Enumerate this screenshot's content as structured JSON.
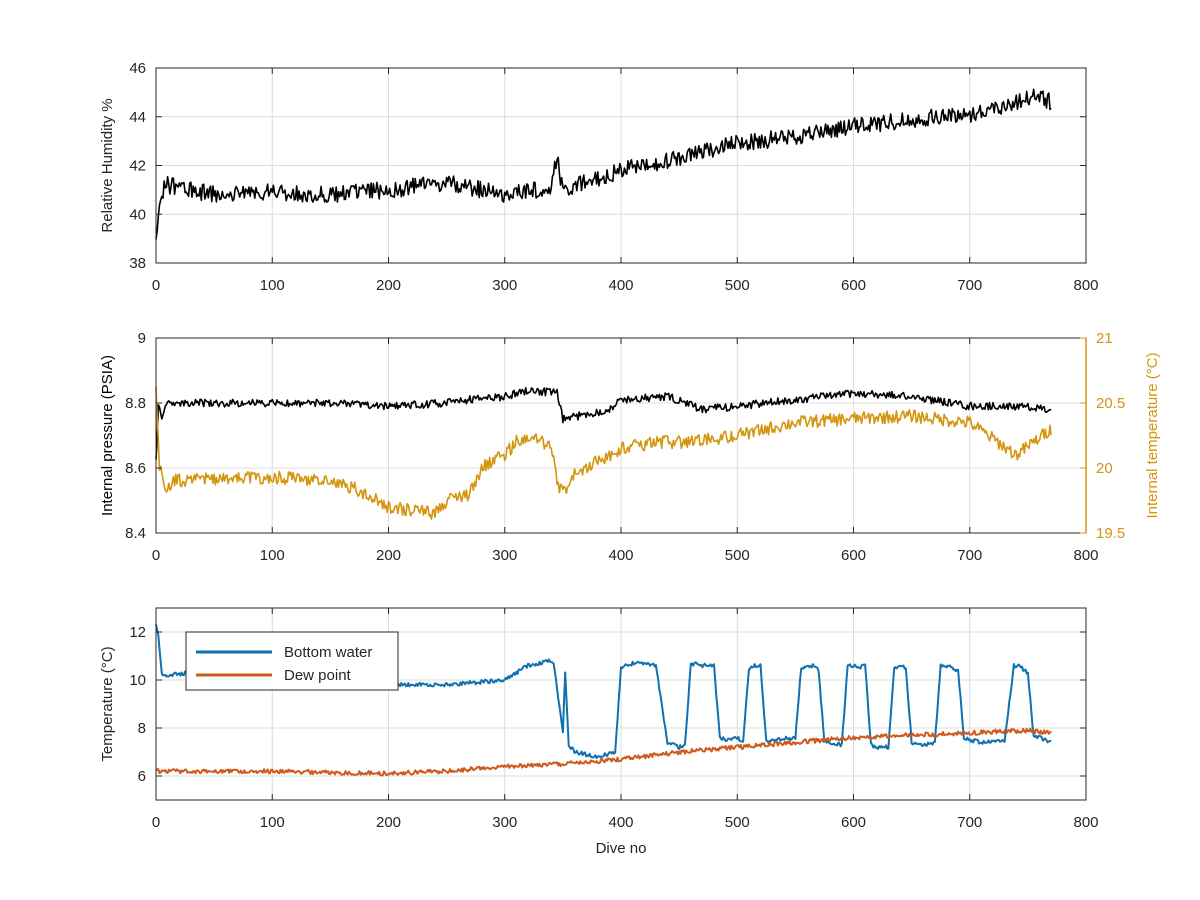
{
  "colors": {
    "black": "#000000",
    "gold": "#D4950F",
    "blue": "#1170B0",
    "orange": "#CD5A1E",
    "grid": "#dcdcdc",
    "axis": "#262626"
  },
  "chart_data": [
    {
      "type": "line",
      "xlabel": "",
      "ylabel": "Relative Humidity %",
      "xlim": [
        0,
        800
      ],
      "ylim": [
        38,
        46
      ],
      "xticks": [
        0,
        100,
        200,
        300,
        400,
        500,
        600,
        700,
        800
      ],
      "yticks": [
        38,
        40,
        42,
        44,
        46
      ],
      "grid": true,
      "series": [
        {
          "color": "#000000",
          "noise": 0.35,
          "x": [
            0,
            3,
            6,
            10,
            50,
            100,
            150,
            200,
            250,
            300,
            330,
            340,
            345,
            350,
            360,
            400,
            450,
            500,
            550,
            600,
            650,
            700,
            740,
            755,
            770
          ],
          "values": [
            38.7,
            40.6,
            41.0,
            41.2,
            40.8,
            40.9,
            40.8,
            41.0,
            41.3,
            40.8,
            41.0,
            41.1,
            42.3,
            41.0,
            41.2,
            41.8,
            42.3,
            42.9,
            43.2,
            43.6,
            43.9,
            44.1,
            44.6,
            44.9,
            44.6
          ]
        }
      ]
    },
    {
      "type": "line",
      "xlabel": "",
      "ylabel": "Internal pressure (PSIA)",
      "y2label": "Internal temperature (°C)",
      "xlim": [
        0,
        800
      ],
      "ylim": [
        8.4,
        9
      ],
      "y2lim": [
        19.5,
        21
      ],
      "xticks": [
        0,
        100,
        200,
        300,
        400,
        500,
        600,
        700,
        800
      ],
      "yticks": [
        8.4,
        8.6,
        8.8,
        9
      ],
      "yticklabels": [
        "8.4",
        "8.6",
        "8.8",
        "9"
      ],
      "y2ticks": [
        19.5,
        20,
        20.5,
        21
      ],
      "y2ticklabels": [
        "19.5",
        "20",
        "20.5",
        "21"
      ],
      "grid": true,
      "series": [
        {
          "axis": "left",
          "color": "#000000",
          "noise": 0.012,
          "x": [
            0,
            2,
            5,
            10,
            50,
            100,
            150,
            200,
            250,
            270,
            300,
            320,
            345,
            350,
            390,
            400,
            440,
            470,
            500,
            550,
            600,
            650,
            700,
            740,
            770
          ],
          "values": [
            8.62,
            8.79,
            8.76,
            8.8,
            8.8,
            8.8,
            8.8,
            8.79,
            8.8,
            8.81,
            8.82,
            8.84,
            8.83,
            8.75,
            8.78,
            8.81,
            8.82,
            8.78,
            8.79,
            8.81,
            8.83,
            8.82,
            8.79,
            8.79,
            8.78
          ]
        },
        {
          "axis": "right",
          "color": "#D4950F",
          "noise": 0.05,
          "x": [
            0,
            3,
            8,
            15,
            50,
            100,
            150,
            170,
            180,
            200,
            240,
            250,
            270,
            280,
            300,
            310,
            330,
            340,
            345,
            350,
            360,
            380,
            400,
            430,
            460,
            500,
            550,
            600,
            650,
            700,
            740,
            770
          ],
          "values": [
            20.6,
            20.0,
            19.85,
            19.9,
            19.92,
            19.93,
            19.9,
            19.85,
            19.8,
            19.7,
            19.65,
            19.75,
            19.8,
            20.0,
            20.1,
            20.2,
            20.22,
            20.15,
            19.9,
            19.8,
            19.95,
            20.05,
            20.15,
            20.2,
            20.2,
            20.25,
            20.35,
            20.38,
            20.4,
            20.35,
            20.1,
            20.3
          ]
        }
      ]
    },
    {
      "type": "line",
      "xlabel": "Dive no",
      "ylabel": "Temperature (°C)",
      "xlim": [
        0,
        800
      ],
      "ylim": [
        5,
        13
      ],
      "xticks": [
        0,
        100,
        200,
        300,
        400,
        500,
        600,
        700,
        800
      ],
      "yticks": [
        6,
        8,
        10,
        12
      ],
      "grid": true,
      "legend": "top-left",
      "series": [
        {
          "name": "Bottom water",
          "color": "#1170B0",
          "noise": 0.08,
          "x": [
            0,
            2,
            5,
            10,
            50,
            100,
            200,
            250,
            300,
            310,
            320,
            340,
            342,
            350,
            352,
            355,
            360,
            380,
            395,
            400,
            410,
            420,
            430,
            440,
            450,
            455,
            460,
            465,
            470,
            480,
            485,
            490,
            500,
            505,
            510,
            515,
            520,
            525,
            530,
            550,
            555,
            560,
            565,
            570,
            575,
            580,
            590,
            595,
            600,
            605,
            610,
            615,
            620,
            630,
            635,
            640,
            645,
            650,
            655,
            660,
            670,
            675,
            680,
            685,
            690,
            695,
            700,
            710,
            730,
            738,
            742,
            750,
            755,
            760,
            770
          ],
          "values": [
            12.3,
            11.8,
            10.2,
            10.2,
            10.4,
            10.3,
            9.8,
            9.8,
            10.0,
            10.3,
            10.6,
            10.8,
            10.7,
            7.8,
            10.3,
            7.3,
            7.0,
            6.8,
            7.0,
            10.5,
            10.7,
            10.7,
            10.6,
            7.4,
            7.2,
            7.3,
            10.6,
            10.7,
            10.6,
            10.6,
            7.6,
            7.5,
            7.6,
            7.4,
            10.5,
            10.6,
            10.6,
            7.4,
            7.5,
            7.6,
            10.5,
            10.6,
            10.6,
            10.4,
            7.4,
            7.4,
            7.3,
            10.6,
            10.6,
            10.5,
            10.6,
            7.3,
            7.2,
            7.2,
            10.5,
            10.6,
            10.5,
            7.4,
            7.3,
            7.3,
            7.4,
            10.6,
            10.6,
            10.5,
            10.4,
            7.6,
            7.5,
            7.4,
            7.5,
            10.6,
            10.6,
            10.3,
            7.6,
            7.6,
            7.4
          ]
        },
        {
          "name": "Dew point",
          "color": "#CD5A1E",
          "noise": 0.09,
          "x": [
            0,
            100,
            200,
            250,
            300,
            350,
            400,
            450,
            500,
            550,
            600,
            650,
            700,
            750,
            770
          ],
          "values": [
            6.2,
            6.2,
            6.1,
            6.2,
            6.4,
            6.5,
            6.7,
            7.0,
            7.2,
            7.4,
            7.6,
            7.7,
            7.8,
            7.9,
            7.8
          ]
        }
      ]
    }
  ]
}
